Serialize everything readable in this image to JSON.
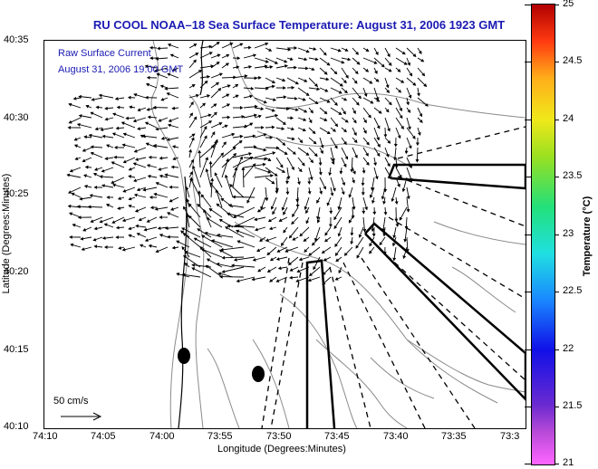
{
  "title": "RU COOL  NOAA–18  Sea Surface Temperature:  August 31, 2006 1923 GMT",
  "annotations": {
    "product": "Raw Surface Current",
    "timestamp": "August 31, 2006 19:00 GMT",
    "scale_vector": "50 cm/s"
  },
  "axes": {
    "x_label": "Longitude (Degrees:Minutes)",
    "y_label": "Latitude (Degrees:Minutes)",
    "x_ticks": [
      "74:10",
      "74:05",
      "74:00",
      "73:55",
      "73:50",
      "73:45",
      "73:40",
      "73:35",
      "73:3"
    ],
    "y_ticks": [
      "40:35",
      "40:30",
      "40:25",
      "40:20",
      "40:15",
      "40:10"
    ]
  },
  "colorbar": {
    "label": "Temperature (°C)",
    "ticks": [
      "25",
      "24.5",
      "24",
      "23.5",
      "23",
      "22.5",
      "22",
      "21.5",
      "21"
    ],
    "range": [
      21,
      25
    ]
  },
  "colors": {
    "title": "#1a1ab4",
    "annotation": "#1a1ab4",
    "land_outline": "#888888",
    "vectors": "#000000"
  }
}
